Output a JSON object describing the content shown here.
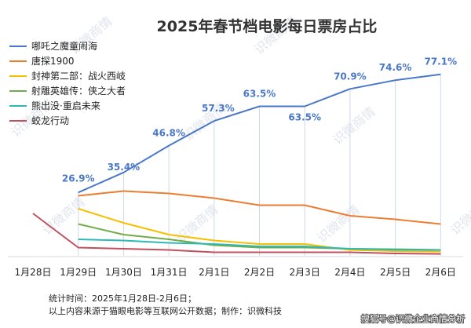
{
  "chart_data": {
    "type": "line",
    "title": "2025年春节档电影每日票房占比",
    "categories": [
      "1月28日",
      "1月29日",
      "1月30日",
      "1月31日",
      "2月1日",
      "2月2日",
      "2月3日",
      "2月4日",
      "2月5日",
      "2月6日"
    ],
    "ylim": [
      0,
      80
    ],
    "series": [
      {
        "name": "哪吒之魔童闹海",
        "color": "#4a78c9",
        "values": [
          null,
          26.9,
          35.4,
          46.8,
          57.3,
          63.5,
          63.5,
          70.9,
          74.6,
          77.1
        ],
        "labels": [
          null,
          "26.9%",
          "35.4%",
          "46.8%",
          "57.3%",
          "63.5%",
          "63.5%",
          "70.9%",
          "74.6%",
          "77.1%"
        ]
      },
      {
        "name": "唐探1900",
        "color": "#ed7d31",
        "values": [
          null,
          25.5,
          27.5,
          26.5,
          24.5,
          21.5,
          21.5,
          17.0,
          15.5,
          13.5
        ]
      },
      {
        "name": "封神第二部：战火西岐",
        "color": "#f5c000",
        "values": [
          null,
          20.0,
          14.0,
          9.0,
          6.5,
          5.0,
          5.0,
          2.5,
          2.0,
          1.8
        ]
      },
      {
        "name": "射雕英雄传：侠之大者",
        "color": "#70ad47",
        "values": [
          null,
          13.5,
          9.0,
          7.0,
          4.5,
          3.5,
          3.5,
          3.0,
          2.8,
          2.5
        ]
      },
      {
        "name": "熊出没·重启未来",
        "color": "#2eb8b8",
        "values": [
          null,
          7.0,
          6.5,
          5.5,
          5.0,
          4.0,
          4.0,
          3.0,
          2.6,
          2.5
        ]
      },
      {
        "name": "蛟龙行动",
        "color": "#c0505f",
        "values": [
          18.0,
          3.5,
          3.0,
          2.5,
          1.5,
          1.5,
          1.5,
          1.5,
          1.0,
          0.8
        ]
      }
    ]
  },
  "footer": {
    "line1": "统计时间：2025年1月28日-2月6日；",
    "line2": "以上内容来源于猫眼电影等互联网公开数据；制作：识微科技",
    "source": "搜狐号@识微企业商情分析"
  },
  "watermark": "识微商情"
}
